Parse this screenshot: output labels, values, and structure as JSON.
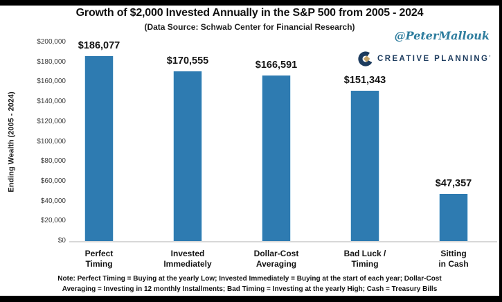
{
  "header": {
    "title": "Growth of $2,000 Invested Annually in the S&P 500 from 2005 - 2024",
    "subtitle": "(Data Source: Schwab Center for Financial Research)",
    "handle": "@PeterMallouk"
  },
  "branding": {
    "logo_icon": "creative-planning-c-mark",
    "logo_text": "CREATIVE PLANNING",
    "logo_tm": "’",
    "navy": "#1C3B5E",
    "gold": "#C4A469"
  },
  "note": {
    "line1": "Note: Perfect Timing = Buying at the yearly Low; Invested Immediately = Buying at the start of each year; Dollar-Cost",
    "line2": "Averaging = Investing in 12 monthly Installments; Bad Timing = Investing at the yearly High; Cash = Treasury Bills"
  },
  "chart_data": {
    "type": "bar",
    "title": "Growth of $2,000 Invested Annually in the S&P 500 from 2005 - 2024",
    "subtitle": "(Data Source: Schwab Center for Financial Research)",
    "xlabel": "",
    "ylabel": "Ending Wealth (2005 - 2024)",
    "categories": [
      "Perfect\nTiming",
      "Invested\nImmediately",
      "Dollar-Cost\nAveraging",
      "Bad Luck /\nTiming",
      "Sitting\nin Cash"
    ],
    "values": [
      186077,
      170555,
      166591,
      151343,
      47357
    ],
    "value_labels": [
      "$186,077",
      "$170,555",
      "$166,591",
      "$151,343",
      "$47,357"
    ],
    "ylim": [
      0,
      200000
    ],
    "y_tick_values": [
      0,
      20000,
      40000,
      60000,
      80000,
      100000,
      120000,
      140000,
      160000,
      180000,
      200000
    ],
    "y_tick_labels": [
      "$0",
      "$20,000",
      "$40,000",
      "$60,000",
      "$80,000",
      "$100,000",
      "$120,000",
      "$140,000",
      "$160,000",
      "$180,000",
      "$200,000"
    ],
    "bar_color": "#2E7BB1",
    "grid": "off",
    "legend_position": "none"
  }
}
